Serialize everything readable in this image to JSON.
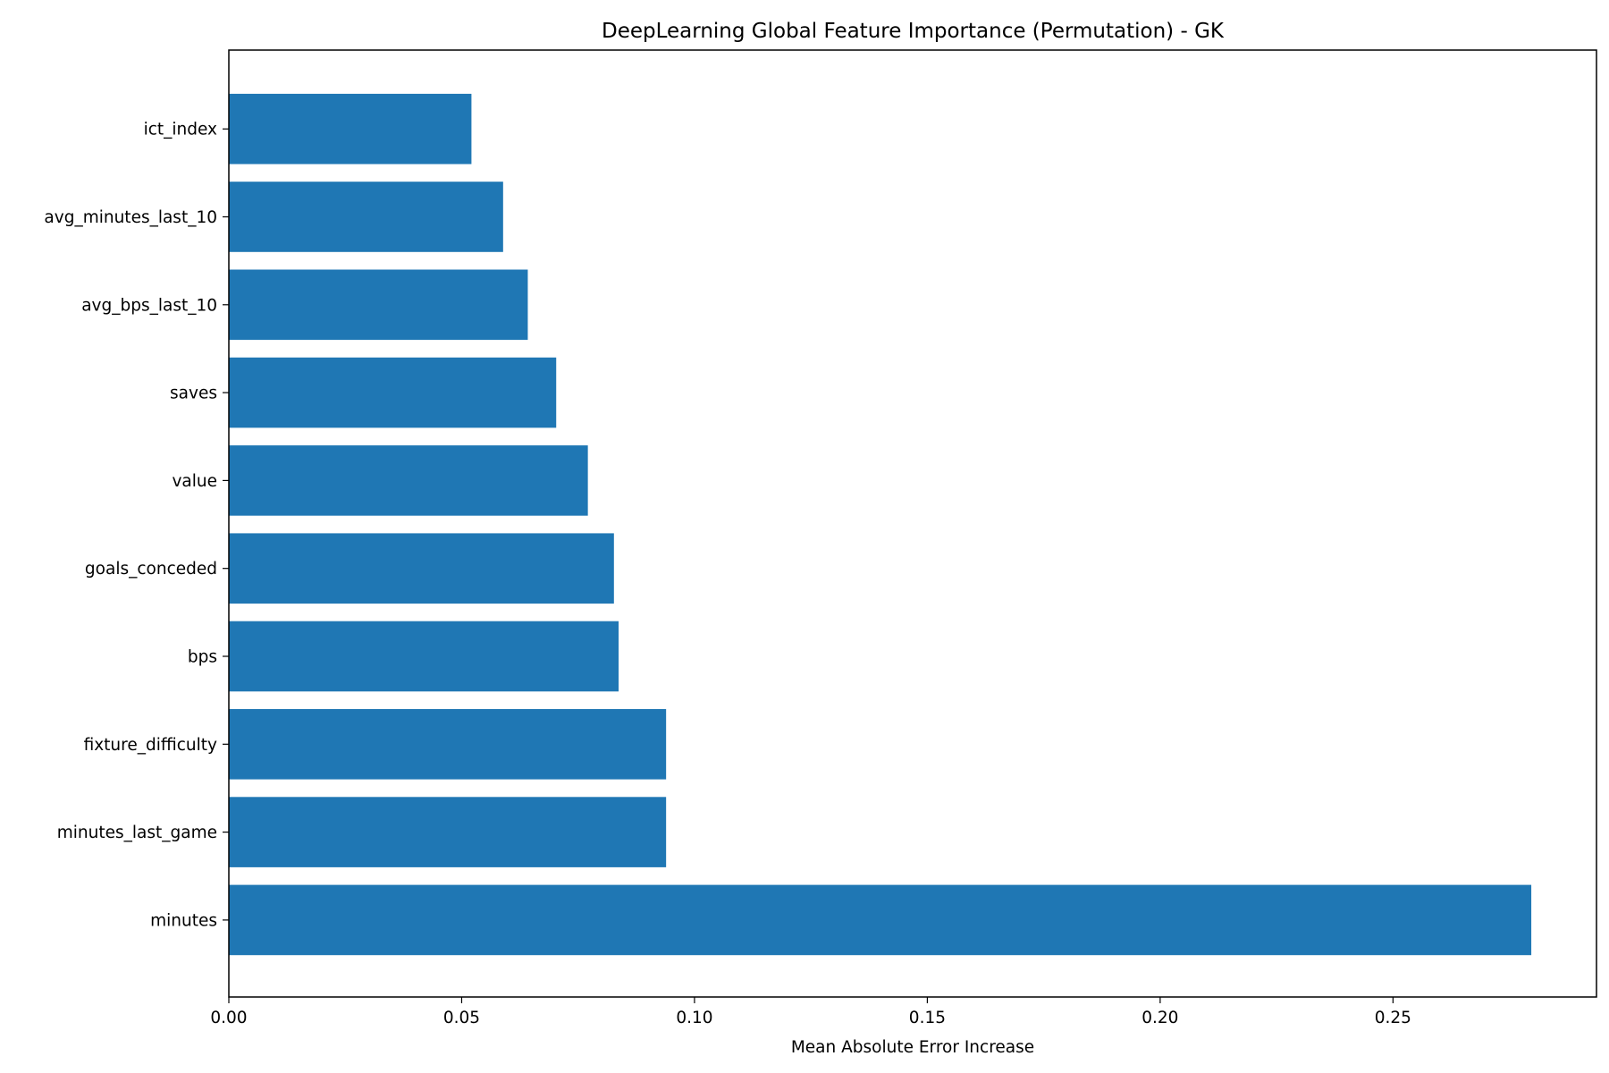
{
  "chart_data": {
    "type": "bar",
    "orientation": "horizontal",
    "title": "DeepLearning Global Feature Importance (Permutation) - GK",
    "xlabel": "Mean Absolute Error Increase",
    "ylabel": "",
    "categories": [
      "ict_index",
      "avg_minutes_last_10",
      "avg_bps_last_10",
      "saves",
      "value",
      "goals_conceded",
      "bps",
      "fixture_difficulty",
      "minutes_last_game",
      "minutes"
    ],
    "values": [
      0.0521,
      0.0589,
      0.0642,
      0.0703,
      0.0771,
      0.0827,
      0.0837,
      0.0939,
      0.0939,
      0.2797
    ],
    "xlim": [
      0,
      0.2937
    ],
    "xticks": [
      "0.00",
      "0.05",
      "0.10",
      "0.15",
      "0.20",
      "0.25"
    ],
    "bar_color": "#1f77b4",
    "grid": false,
    "legend": "none"
  }
}
